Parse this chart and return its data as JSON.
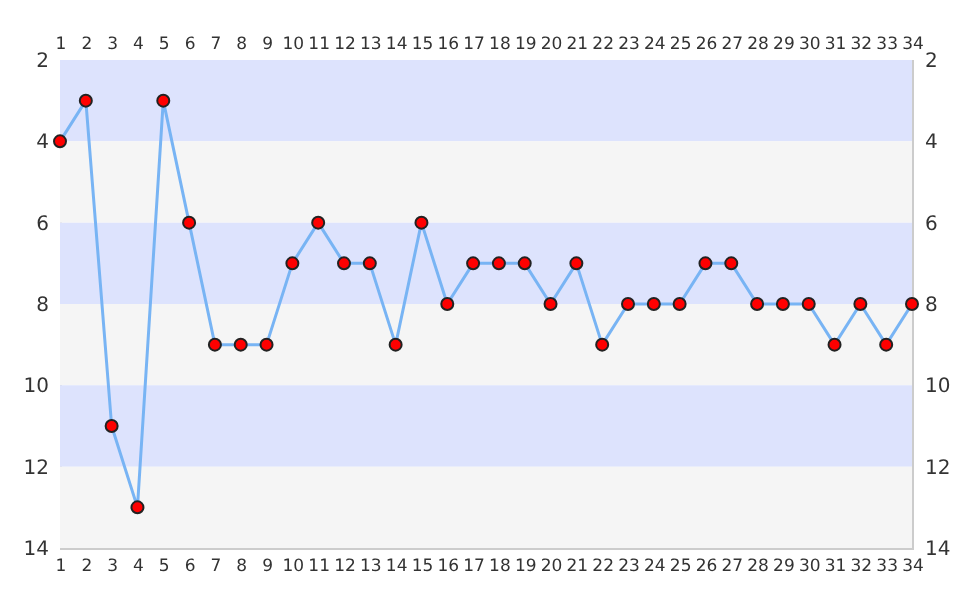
{
  "chart_data": {
    "type": "line",
    "x": [
      1,
      2,
      3,
      4,
      5,
      6,
      7,
      8,
      9,
      10,
      11,
      12,
      13,
      14,
      15,
      16,
      17,
      18,
      19,
      20,
      21,
      22,
      23,
      24,
      25,
      26,
      27,
      28,
      29,
      30,
      31,
      32,
      33,
      34
    ],
    "series": [
      {
        "color": "#78b4f4",
        "values": [
          4,
          3,
          11,
          13,
          3,
          6,
          9,
          9,
          9,
          7,
          6,
          7,
          7,
          9,
          6,
          8,
          7,
          7,
          7,
          8,
          7,
          9,
          8,
          8,
          8,
          7,
          7,
          8,
          8,
          8,
          9,
          8,
          9,
          8
        ]
      }
    ],
    "xlim": [
      1,
      34
    ],
    "xticks": [
      1,
      2,
      3,
      4,
      5,
      6,
      7,
      8,
      9,
      10,
      11,
      12,
      13,
      14,
      15,
      16,
      17,
      18,
      19,
      20,
      21,
      22,
      23,
      24,
      25,
      26,
      27,
      28,
      29,
      30,
      31,
      32,
      33,
      34
    ],
    "x2lim": [
      1,
      34
    ],
    "x2ticks": [
      1,
      2,
      3,
      4,
      5,
      6,
      7,
      8,
      9,
      10,
      11,
      12,
      13,
      14,
      15,
      16,
      17,
      18,
      19,
      20,
      21,
      22,
      23,
      24,
      25,
      26,
      27,
      28,
      29,
      30,
      31,
      32,
      33,
      34
    ],
    "ylim": [
      14,
      2
    ],
    "yticks": [
      2,
      4,
      6,
      8,
      10,
      12,
      14
    ],
    "y2lim": [
      14,
      2
    ],
    "y2ticks": [
      2,
      4,
      6,
      8,
      10,
      12,
      14
    ],
    "bands": [
      {
        "axis": "y",
        "from": 2,
        "to": 4,
        "color": "#dde3fd"
      },
      {
        "axis": "y",
        "from": 4,
        "to": 6,
        "color": "#f5f5f5"
      },
      {
        "axis": "y",
        "from": 6,
        "to": 8,
        "color": "#dde3fd"
      },
      {
        "axis": "y",
        "from": 8,
        "to": 10,
        "color": "#f5f5f5"
      },
      {
        "axis": "y",
        "from": 10,
        "to": 12,
        "color": "#dde3fd"
      },
      {
        "axis": "y",
        "from": 12,
        "to": 14,
        "color": "#f5f5f5"
      }
    ],
    "marker": "circle",
    "grid": false
  }
}
